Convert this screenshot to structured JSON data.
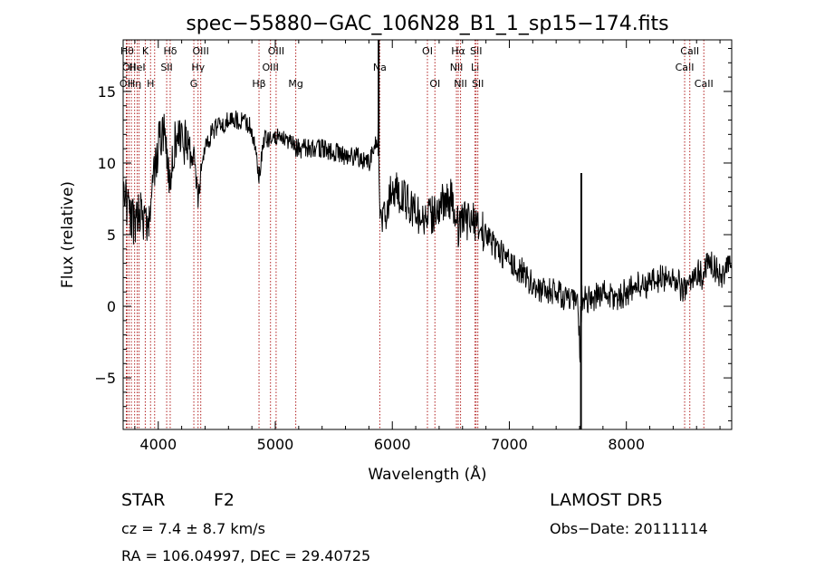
{
  "chart_data": {
    "type": "line",
    "title": "spec−55880−GAC_106N28_B1_1_sp15−174.fits",
    "xlabel": "Wavelength (Å)",
    "ylabel": "Flux (relative)",
    "xlim": [
      3700,
      8900
    ],
    "ylim": [
      -8.6,
      18.6
    ],
    "xticks": [
      4000,
      5000,
      6000,
      7000,
      8000
    ],
    "yticks": [
      -5,
      0,
      5,
      10,
      15
    ],
    "line_color": "#000000",
    "marker_color": "#b22222",
    "series": [
      {
        "x": [
          3700,
          3750,
          3800,
          3850,
          3900,
          3950,
          4000,
          4050,
          4100,
          4150,
          4200,
          4250,
          4300,
          4340,
          4380,
          4450,
          4500,
          4600,
          4700,
          4800,
          4861,
          4900,
          5000,
          5100,
          5200,
          5300,
          5400,
          5500,
          5600,
          5700,
          5800,
          5880,
          5895,
          5950,
          6000,
          6100,
          6200,
          6300,
          6400,
          6500,
          6563,
          6600,
          6700,
          6800,
          6900,
          7000,
          7100,
          7200,
          7300,
          7400,
          7500,
          7590,
          7605,
          7620,
          7700,
          7800,
          7900,
          8000,
          8100,
          8200,
          8300,
          8400,
          8498,
          8542,
          8600,
          8662,
          8700,
          8800,
          8860,
          8900
        ],
        "y": [
          8.0,
          6.5,
          5.5,
          7.0,
          5.5,
          8.0,
          11.5,
          12.0,
          9.0,
          12.0,
          11.5,
          11.5,
          11.0,
          7.5,
          10.5,
          12.0,
          12.5,
          13.0,
          13.0,
          12.5,
          9.0,
          11.5,
          12.0,
          11.5,
          11.0,
          11.0,
          11.0,
          10.8,
          10.5,
          10.5,
          10.0,
          12.0,
          6.0,
          6.5,
          8.5,
          7.5,
          6.5,
          6.0,
          7.0,
          7.5,
          5.5,
          6.0,
          6.0,
          5.0,
          4.0,
          3.0,
          2.5,
          1.5,
          1.0,
          1.0,
          0.5,
          0.0,
          -4.5,
          0.5,
          0.5,
          1.0,
          0.5,
          1.0,
          1.5,
          1.5,
          2.0,
          2.0,
          1.0,
          1.5,
          2.5,
          2.0,
          3.5,
          2.0,
          2.5,
          3.0
        ]
      }
    ],
    "spikes": [
      {
        "x": 5883,
        "y0": 10.5,
        "y1": 18.6
      },
      {
        "x": 7615,
        "y0": 0.0,
        "y1": 9.3
      },
      {
        "x": 7612,
        "y0": -8.6,
        "y1": 0.0
      }
    ],
    "lines": [
      {
        "x": 3727,
        "row": 2,
        "label": "OII"
      },
      {
        "x": 3734,
        "row": 0,
        "label": "Hθ"
      },
      {
        "x": 3750,
        "row": 1,
        "label": "OII"
      },
      {
        "x": 3770,
        "row": 0,
        "label": ""
      },
      {
        "x": 3798,
        "row": 2,
        "label": "Hη"
      },
      {
        "x": 3820,
        "row": 1,
        "label": "HeI"
      },
      {
        "x": 3835,
        "row": 0,
        "label": ""
      },
      {
        "x": 3889,
        "row": 0,
        "label": "K"
      },
      {
        "x": 3934,
        "row": 2,
        "label": "H"
      },
      {
        "x": 3969,
        "row": 0,
        "label": ""
      },
      {
        "x": 4072,
        "row": 1,
        "label": "SII"
      },
      {
        "x": 4102,
        "row": 0,
        "label": "Hδ"
      },
      {
        "x": 4304,
        "row": 2,
        "label": "G"
      },
      {
        "x": 4340,
        "row": 1,
        "label": "Hγ"
      },
      {
        "x": 4363,
        "row": 0,
        "label": "OIII"
      },
      {
        "x": 4861,
        "row": 2,
        "label": "Hβ"
      },
      {
        "x": 4959,
        "row": 1,
        "label": "OIII"
      },
      {
        "x": 5007,
        "row": 0,
        "label": "OIII"
      },
      {
        "x": 5175,
        "row": 2,
        "label": "Mg"
      },
      {
        "x": 5893,
        "row": 1,
        "label": "Na"
      },
      {
        "x": 6300,
        "row": 0,
        "label": "OI"
      },
      {
        "x": 6364,
        "row": 2,
        "label": "OI"
      },
      {
        "x": 6548,
        "row": 1,
        "label": "NII"
      },
      {
        "x": 6563,
        "row": 0,
        "label": "Hα"
      },
      {
        "x": 6583,
        "row": 2,
        "label": "NII"
      },
      {
        "x": 6707,
        "row": 1,
        "label": "Li"
      },
      {
        "x": 6716,
        "row": 0,
        "label": "SII"
      },
      {
        "x": 6731,
        "row": 2,
        "label": "SII"
      },
      {
        "x": 8498,
        "row": 1,
        "label": "CaII"
      },
      {
        "x": 8542,
        "row": 0,
        "label": "CaII"
      },
      {
        "x": 8662,
        "row": 2,
        "label": "CaII"
      }
    ]
  },
  "info": {
    "class": "STAR",
    "subclass": "F2",
    "cz": "cz = 7.4 ± 8.7 km/s",
    "coords": "RA = 106.04997, DEC =  29.40725",
    "survey": "LAMOST DR5",
    "obs_date": "Obs−Date: 20111114"
  }
}
